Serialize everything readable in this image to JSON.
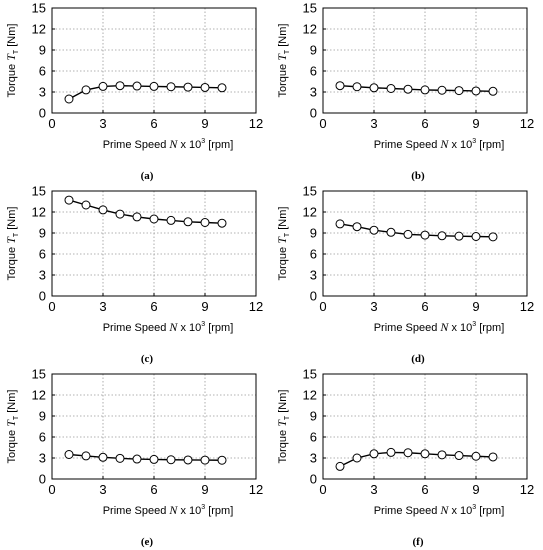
{
  "chart_data": [
    {
      "type": "line",
      "panel_label": "(a)",
      "xlabel": "Prime Speed",
      "xlabel_symbol": "N",
      "xlabel_mult": "x 10",
      "xlabel_exp": "3",
      "xlabel_unit": "[rpm]",
      "ylabel": "Torque",
      "ylabel_symbol": "T",
      "ylabel_sub": "T",
      "ylabel_unit": "[Nm]",
      "xlim": [
        0,
        12
      ],
      "ylim": [
        0,
        15
      ],
      "xticks": [
        "0",
        "3",
        "6",
        "9",
        "12"
      ],
      "yticks": [
        "0",
        "3",
        "6",
        "9",
        "12",
        "15"
      ],
      "grid": true,
      "x": [
        1,
        2,
        3,
        4,
        5,
        6,
        7,
        8,
        9,
        10
      ],
      "y": [
        2.0,
        3.3,
        3.8,
        3.9,
        3.85,
        3.8,
        3.75,
        3.7,
        3.65,
        3.6
      ]
    },
    {
      "type": "line",
      "panel_label": "(b)",
      "xlabel": "Prime Speed",
      "xlabel_symbol": "N",
      "xlabel_mult": "x 10",
      "xlabel_exp": "3",
      "xlabel_unit": "[rpm]",
      "ylabel": "Torque",
      "ylabel_symbol": "T",
      "ylabel_sub": "T",
      "ylabel_unit": "[Nm]",
      "xlim": [
        0,
        12
      ],
      "ylim": [
        0,
        15
      ],
      "xticks": [
        "0",
        "3",
        "6",
        "9",
        "12"
      ],
      "yticks": [
        "0",
        "3",
        "6",
        "9",
        "12",
        "15"
      ],
      "grid": true,
      "x": [
        1,
        2,
        3,
        4,
        5,
        6,
        7,
        8,
        9,
        10
      ],
      "y": [
        3.9,
        3.75,
        3.6,
        3.5,
        3.4,
        3.3,
        3.25,
        3.2,
        3.15,
        3.1
      ]
    },
    {
      "type": "line",
      "panel_label": "(c)",
      "xlabel": "Prime Speed",
      "xlabel_symbol": "N",
      "xlabel_mult": "x 10",
      "xlabel_exp": "3",
      "xlabel_unit": "[rpm]",
      "ylabel": "Torque",
      "ylabel_symbol": "T",
      "ylabel_sub": "T",
      "ylabel_unit": "[Nm]",
      "xlim": [
        0,
        12
      ],
      "ylim": [
        0,
        15
      ],
      "xticks": [
        "0",
        "3",
        "6",
        "9",
        "12"
      ],
      "yticks": [
        "0",
        "3",
        "6",
        "9",
        "12",
        "15"
      ],
      "grid": true,
      "x": [
        1,
        2,
        3,
        4,
        5,
        6,
        7,
        8,
        9,
        10
      ],
      "y": [
        13.7,
        13.0,
        12.3,
        11.7,
        11.3,
        11.0,
        10.8,
        10.6,
        10.5,
        10.4
      ]
    },
    {
      "type": "line",
      "panel_label": "(d)",
      "xlabel": "Prime Speed",
      "xlabel_symbol": "N",
      "xlabel_mult": "x 10",
      "xlabel_exp": "3",
      "xlabel_unit": "[rpm]",
      "ylabel": "Torque",
      "ylabel_symbol": "T",
      "ylabel_sub": "T",
      "ylabel_unit": "[Nm]",
      "xlim": [
        0,
        12
      ],
      "ylim": [
        0,
        15
      ],
      "xticks": [
        "0",
        "3",
        "6",
        "9",
        "12"
      ],
      "yticks": [
        "0",
        "3",
        "6",
        "9",
        "12",
        "15"
      ],
      "grid": true,
      "x": [
        1,
        2,
        3,
        4,
        5,
        6,
        7,
        8,
        9,
        10
      ],
      "y": [
        10.3,
        9.9,
        9.4,
        9.1,
        8.8,
        8.7,
        8.6,
        8.55,
        8.5,
        8.45
      ]
    },
    {
      "type": "line",
      "panel_label": "(e)",
      "xlabel": "Prime Speed",
      "xlabel_symbol": "N",
      "xlabel_mult": "x 10",
      "xlabel_exp": "3",
      "xlabel_unit": "[rpm]",
      "ylabel": "Torque",
      "ylabel_symbol": "T",
      "ylabel_sub": "T",
      "ylabel_unit": "[Nm]",
      "xlim": [
        0,
        12
      ],
      "ylim": [
        0,
        15
      ],
      "xticks": [
        "0",
        "3",
        "6",
        "9",
        "12"
      ],
      "yticks": [
        "0",
        "3",
        "6",
        "9",
        "12",
        "15"
      ],
      "grid": true,
      "x": [
        1,
        2,
        3,
        4,
        5,
        6,
        7,
        8,
        9,
        10
      ],
      "y": [
        3.5,
        3.3,
        3.1,
        2.95,
        2.85,
        2.8,
        2.75,
        2.72,
        2.7,
        2.68
      ]
    },
    {
      "type": "line",
      "panel_label": "(f)",
      "xlabel": "Prime Speed",
      "xlabel_symbol": "N",
      "xlabel_mult": "x 10",
      "xlabel_exp": "3",
      "xlabel_unit": "[rpm]",
      "ylabel": "Torque",
      "ylabel_symbol": "T",
      "ylabel_sub": "T",
      "ylabel_unit": "[Nm]",
      "xlim": [
        0,
        12
      ],
      "ylim": [
        0,
        15
      ],
      "xticks": [
        "0",
        "3",
        "6",
        "9",
        "12"
      ],
      "yticks": [
        "0",
        "3",
        "6",
        "9",
        "12",
        "15"
      ],
      "grid": true,
      "x": [
        1,
        2,
        3,
        4,
        5,
        6,
        7,
        8,
        9,
        10
      ],
      "y": [
        1.8,
        3.0,
        3.6,
        3.8,
        3.75,
        3.6,
        3.45,
        3.35,
        3.25,
        3.15
      ]
    }
  ]
}
